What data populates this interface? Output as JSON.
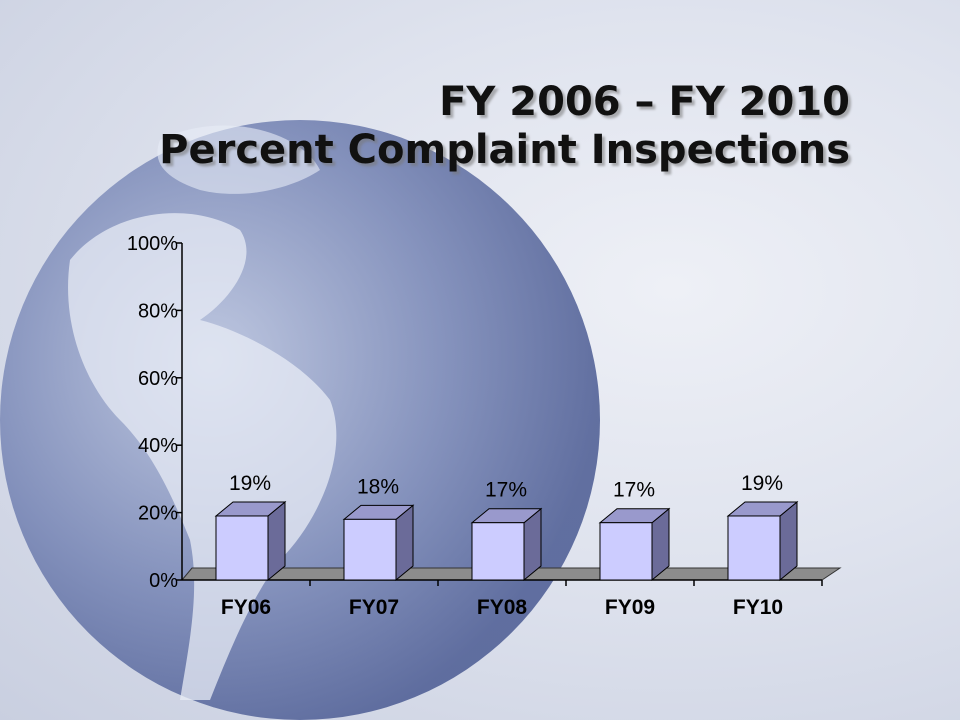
{
  "slide": {
    "title_line1": "FY 2006 – FY 2010",
    "title_line2": "Percent Complaint Inspections"
  },
  "colors": {
    "bar_front": "#ccccff",
    "bar_side": "#6b6b99",
    "bar_top": "#9999cc",
    "floor": "#8c8c8c",
    "text": "#000000"
  },
  "chart_data": {
    "type": "bar",
    "categories": [
      "FY06",
      "FY07",
      "FY08",
      "FY09",
      "FY10"
    ],
    "values": [
      19,
      18,
      17,
      17,
      19
    ],
    "value_labels": [
      "19%",
      "18%",
      "17%",
      "17%",
      "19%"
    ],
    "ylim": [
      0,
      100
    ],
    "yticks": [
      0,
      20,
      40,
      60,
      80,
      100
    ],
    "ytick_labels": [
      "0%",
      "20%",
      "40%",
      "60%",
      "80%",
      "100%"
    ],
    "grid": false,
    "legend": "none",
    "style": "3d"
  }
}
